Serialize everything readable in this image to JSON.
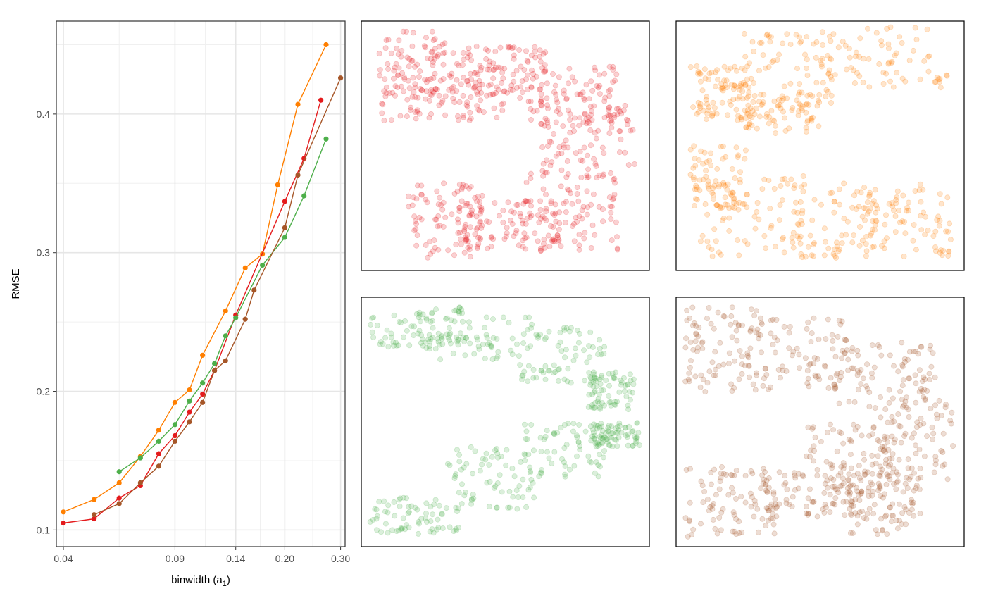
{
  "chart_data": [
    {
      "type": "line",
      "title": "",
      "xlabel": "binwidth (a",
      "xlabel_subscript": "1",
      "xlabel_close": ")",
      "ylabel": "RMSE",
      "x_scale": "log",
      "xlim": [
        0.038,
        0.31
      ],
      "ylim": [
        0.088,
        0.467
      ],
      "x_ticks": [
        0.04,
        0.09,
        0.14,
        0.2,
        0.3
      ],
      "x_tick_labels": [
        "0.04",
        "0.09",
        "0.14",
        "0.20",
        "0.30"
      ],
      "y_ticks": [
        0.1,
        0.2,
        0.3,
        0.4
      ],
      "y_tick_labels": [
        "0.1",
        "0.2",
        "0.3",
        "0.4"
      ],
      "grid": true,
      "legend": "none",
      "series": [
        {
          "color": "#FF7F00",
          "x": [
            0.04,
            0.05,
            0.06,
            0.07,
            0.08,
            0.09,
            0.1,
            0.11,
            0.13,
            0.15,
            0.17,
            0.19,
            0.22,
            0.27
          ],
          "y": [
            0.113,
            0.122,
            0.134,
            0.153,
            0.172,
            0.192,
            0.201,
            0.226,
            0.258,
            0.289,
            0.299,
            0.349,
            0.407,
            0.45
          ]
        },
        {
          "color": "#E41A1C",
          "x": [
            0.04,
            0.05,
            0.06,
            0.07,
            0.08,
            0.09,
            0.1,
            0.11,
            0.12,
            0.14,
            0.2,
            0.23,
            0.26
          ],
          "y": [
            0.105,
            0.108,
            0.123,
            0.132,
            0.155,
            0.168,
            0.185,
            0.198,
            0.215,
            0.255,
            0.337,
            0.368,
            0.41
          ]
        },
        {
          "color": "#4DAF4A",
          "x": [
            0.06,
            0.07,
            0.08,
            0.09,
            0.1,
            0.11,
            0.12,
            0.13,
            0.14,
            0.17,
            0.2,
            0.23,
            0.27
          ],
          "y": [
            0.142,
            0.152,
            0.164,
            0.176,
            0.193,
            0.206,
            0.22,
            0.24,
            0.253,
            0.291,
            0.311,
            0.341,
            0.382
          ]
        },
        {
          "color": "#A65628",
          "x": [
            0.05,
            0.06,
            0.07,
            0.08,
            0.09,
            0.1,
            0.11,
            0.12,
            0.13,
            0.15,
            0.16,
            0.2,
            0.22,
            0.3
          ],
          "y": [
            0.111,
            0.119,
            0.134,
            0.146,
            0.164,
            0.178,
            0.192,
            0.215,
            0.222,
            0.252,
            0.273,
            0.318,
            0.356,
            0.426
          ]
        }
      ]
    },
    {
      "type": "scatter",
      "title": "",
      "point_alpha": 0.2,
      "panels": [
        {
          "color": "#E41A1C",
          "description_shape": "C-shape",
          "regions": [
            [
              0.06,
              0.04,
              0.34,
              0.32
            ],
            [
              0.06,
              0.2,
              0.5,
              0.4
            ],
            [
              0.35,
              0.1,
              0.65,
              0.3
            ],
            [
              0.55,
              0.18,
              0.9,
              0.45
            ],
            [
              0.62,
              0.3,
              0.95,
              0.65
            ],
            [
              0.55,
              0.6,
              0.9,
              0.93
            ],
            [
              0.35,
              0.72,
              0.7,
              0.92
            ],
            [
              0.16,
              0.65,
              0.42,
              0.95
            ]
          ],
          "points_per_region": 90
        },
        {
          "color": "#FF7F00",
          "description_shape": "C-shape",
          "regions": [
            [
              0.05,
              0.18,
              0.25,
              0.4
            ],
            [
              0.2,
              0.05,
              0.55,
              0.35
            ],
            [
              0.5,
              0.02,
              0.95,
              0.28
            ],
            [
              0.22,
              0.28,
              0.5,
              0.45
            ],
            [
              0.05,
              0.5,
              0.25,
              0.75
            ],
            [
              0.08,
              0.62,
              0.45,
              0.95
            ],
            [
              0.4,
              0.65,
              0.7,
              0.95
            ],
            [
              0.65,
              0.65,
              0.96,
              0.95
            ]
          ],
          "points_per_region": 75
        },
        {
          "color": "#4DAF4A",
          "description_shape": "two bands",
          "regions": [
            [
              0.03,
              0.04,
              0.35,
              0.2
            ],
            [
              0.2,
              0.08,
              0.6,
              0.25
            ],
            [
              0.55,
              0.12,
              0.85,
              0.35
            ],
            [
              0.78,
              0.3,
              0.95,
              0.45
            ],
            [
              0.03,
              0.8,
              0.35,
              0.95
            ],
            [
              0.3,
              0.6,
              0.6,
              0.85
            ],
            [
              0.55,
              0.5,
              0.85,
              0.72
            ],
            [
              0.8,
              0.5,
              0.97,
              0.6
            ]
          ],
          "points_per_region": 70
        },
        {
          "color": "#A65628",
          "description_shape": "C-shape",
          "regions": [
            [
              0.03,
              0.04,
              0.3,
              0.38
            ],
            [
              0.25,
              0.08,
              0.6,
              0.38
            ],
            [
              0.55,
              0.18,
              0.9,
              0.45
            ],
            [
              0.7,
              0.4,
              0.97,
              0.75
            ],
            [
              0.45,
              0.5,
              0.75,
              0.8
            ],
            [
              0.3,
              0.7,
              0.65,
              0.88
            ],
            [
              0.03,
              0.68,
              0.35,
              0.96
            ],
            [
              0.6,
              0.7,
              0.85,
              0.95
            ]
          ],
          "points_per_region": 85
        }
      ]
    }
  ]
}
